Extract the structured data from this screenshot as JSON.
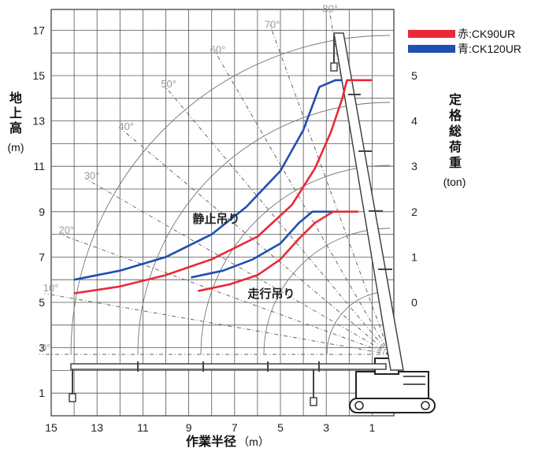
{
  "chart_data": {
    "type": "line",
    "xlabel": "作業半径",
    "xunit": "（m）",
    "ylabel": "地上高",
    "yunit": "(m)",
    "y2label": "定格総荷重",
    "y2unit": "(ton)",
    "xlim": [
      15,
      -1
    ],
    "ylim": [
      0,
      17.8
    ],
    "x_ticks": [
      "15",
      "13",
      "11",
      "9",
      "7",
      "5",
      "3",
      "1"
    ],
    "y_ticks": [
      "1",
      "3",
      "5",
      "7",
      "9",
      "11",
      "13",
      "15",
      "17"
    ],
    "y2_ticks": [
      {
        "label": "0",
        "y": 5.0
      },
      {
        "label": "1",
        "y": 7.0
      },
      {
        "label": "2",
        "y": 9.0
      },
      {
        "label": "3",
        "y": 11.0
      },
      {
        "label": "4",
        "y": 13.0
      },
      {
        "label": "5",
        "y": 15.0
      }
    ],
    "angle_labels": [
      {
        "label": "0°",
        "angle": 0
      },
      {
        "label": "10°",
        "angle": 10
      },
      {
        "label": "20°",
        "angle": 20
      },
      {
        "label": "30°",
        "angle": 30
      },
      {
        "label": "40°",
        "angle": 40
      },
      {
        "label": "50°",
        "angle": 50
      },
      {
        "label": "60°",
        "angle": 60
      },
      {
        "label": "70°",
        "angle": 70
      },
      {
        "label": "80°",
        "angle": 80
      }
    ],
    "legend": [
      {
        "label": "赤:CK90UR",
        "color": "#e8293a"
      },
      {
        "label": "青:CK120UR",
        "color": "#1f4fb0"
      }
    ],
    "annotations": [
      {
        "text": "静止吊り",
        "x": 7.8,
        "y": 8.5
      },
      {
        "text": "走行吊り",
        "x": 5.4,
        "y": 5.2
      }
    ],
    "series": [
      {
        "name": "青:CK120UR",
        "mode": "静止吊り",
        "color": "#1f4fb0",
        "points": [
          [
            14.0,
            6.0
          ],
          [
            12.0,
            6.4
          ],
          [
            10.0,
            7.0
          ],
          [
            8.0,
            8.0
          ],
          [
            6.5,
            9.2
          ],
          [
            5.0,
            10.8
          ],
          [
            4.0,
            12.6
          ],
          [
            3.3,
            14.5
          ],
          [
            2.6,
            14.8
          ],
          [
            2.3,
            14.8
          ]
        ]
      },
      {
        "name": "赤:CK90UR",
        "mode": "静止吊り",
        "color": "#e8293a",
        "points": [
          [
            14.0,
            5.4
          ],
          [
            12.0,
            5.7
          ],
          [
            10.0,
            6.2
          ],
          [
            8.0,
            6.9
          ],
          [
            6.0,
            7.9
          ],
          [
            4.5,
            9.3
          ],
          [
            3.5,
            10.9
          ],
          [
            2.8,
            12.5
          ],
          [
            2.3,
            14.0
          ],
          [
            2.1,
            14.8
          ],
          [
            1.0,
            14.8
          ]
        ]
      },
      {
        "name": "青:CK120UR",
        "mode": "走行吊り",
        "color": "#1f4fb0",
        "points": [
          [
            8.9,
            6.1
          ],
          [
            7.5,
            6.4
          ],
          [
            6.2,
            6.9
          ],
          [
            5.0,
            7.6
          ],
          [
            4.2,
            8.5
          ],
          [
            3.6,
            9.0
          ],
          [
            2.3,
            9.0
          ]
        ]
      },
      {
        "name": "赤:CK90UR",
        "mode": "走行吊り",
        "color": "#e8293a",
        "points": [
          [
            8.6,
            5.5
          ],
          [
            7.2,
            5.8
          ],
          [
            6.0,
            6.2
          ],
          [
            5.0,
            6.9
          ],
          [
            4.2,
            7.8
          ],
          [
            3.5,
            8.5
          ],
          [
            2.7,
            9.0
          ],
          [
            1.6,
            9.0
          ]
        ]
      }
    ]
  }
}
